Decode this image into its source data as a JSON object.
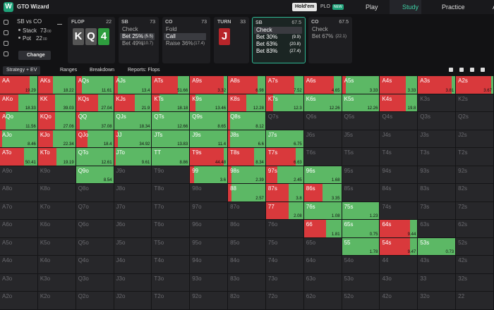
{
  "header": {
    "logo": "W",
    "app": "GTO Wizard",
    "modes": [
      {
        "name": "Hold'em",
        "active": true
      },
      {
        "name": "PLO",
        "active": false,
        "badge": "NEW"
      }
    ],
    "nav": [
      {
        "name": "Play",
        "active": false
      },
      {
        "name": "Study",
        "active": true
      },
      {
        "name": "Practice",
        "active": false
      },
      {
        "name": "Analyze",
        "active": false
      }
    ]
  },
  "scenario": {
    "title": "SB vs CO",
    "stack": {
      "label": "Stack",
      "amount": "73",
      "decimals": "00"
    },
    "pot": {
      "label": "Pot",
      "amount": "22",
      "decimals": "00"
    },
    "button": "Change"
  },
  "flop": {
    "label": "FLOP",
    "pot": 22,
    "cards": [
      {
        "rank": "K",
        "color": "#555"
      },
      {
        "rank": "Q",
        "color": "#555"
      },
      {
        "rank": "4",
        "color": "#2e9e3e"
      }
    ]
  },
  "turn": {
    "label": "TURN",
    "pot": 33,
    "cards": [
      {
        "rank": "J",
        "color": "#b8252a"
      }
    ]
  },
  "players": [
    {
      "name": "SB",
      "stack": 73,
      "actions": [
        {
          "name": "Check"
        },
        {
          "name": "Bet 25%",
          "size": "(5.5)",
          "selected": true
        },
        {
          "name": "Bet 49%",
          "size": "(10.7)"
        }
      ]
    },
    {
      "name": "CO",
      "stack": 73,
      "actions": [
        {
          "name": "Fold"
        },
        {
          "name": "Call",
          "selected": true
        },
        {
          "name": "Raise 36%",
          "size": "(17.4)"
        }
      ]
    },
    {
      "name": "SB",
      "stack": 67.5,
      "current": true,
      "actions": [
        {
          "name": "Check",
          "selected": true
        },
        {
          "name": "Bet 30%",
          "size": "(9.9)"
        },
        {
          "name": "Bet 63%",
          "size": "(20.8)"
        },
        {
          "name": "Bet 83%",
          "size": "(27.4)"
        }
      ]
    },
    {
      "name": "CO",
      "stack": 67.5,
      "actions": [
        {
          "name": "Check"
        },
        {
          "name": "Bet 67%",
          "size": "(22.1)"
        }
      ]
    }
  ],
  "toolbar": [
    "Strategy + EV",
    "Ranges",
    "Breakdown",
    "Reports: Flops"
  ],
  "matrix": {
    "colors": {
      "bet": "#d9393c",
      "check": "#5cb865",
      "empty": "#27272a"
    },
    "rows": [
      [
        {
          "hand": "AA",
          "ev": 19.29,
          "bet": 80
        },
        {
          "hand": "AKs",
          "ev": 18.22,
          "bet": 40
        },
        {
          "hand": "AQs",
          "ev": 11.61,
          "bet": 15
        },
        {
          "hand": "AJs",
          "ev": 13.4,
          "bet": 10
        },
        {
          "hand": "ATs",
          "ev": 51.66,
          "bet": 70
        },
        {
          "hand": "A9s",
          "ev": 3.32,
          "bet": 90
        },
        {
          "hand": "A8s",
          "ev": 6.98,
          "bet": 80
        },
        {
          "hand": "A7s",
          "ev": 7.52,
          "bet": 75
        },
        {
          "hand": "A6s",
          "ev": 4.65,
          "bet": 80
        },
        {
          "hand": "A5s",
          "ev": 3.33,
          "bet": 10
        },
        {
          "hand": "A4s",
          "ev": 3.33,
          "bet": 70
        },
        {
          "hand": "A3s",
          "ev": 3.81,
          "bet": 90
        },
        {
          "hand": "A2s",
          "ev": 3.67,
          "bet": 95
        }
      ],
      [
        {
          "hand": "AKo",
          "ev": 18.33,
          "bet": 50
        },
        {
          "hand": "KK",
          "ev": 39.03,
          "bet": 45
        },
        {
          "hand": "KQs",
          "ev": 27.04,
          "bet": 60
        },
        {
          "hand": "KJs",
          "ev": 21.9,
          "bet": 55
        },
        {
          "hand": "KTs",
          "ev": 18.18,
          "bet": 20
        },
        {
          "hand": "K9s",
          "ev": 13.46,
          "bet": 15
        },
        {
          "hand": "K8s",
          "ev": 12.28,
          "bet": 50
        },
        {
          "hand": "K7s",
          "ev": 12.3,
          "bet": 20
        },
        {
          "hand": "K6s",
          "ev": 12.26,
          "bet": 0
        },
        {
          "hand": "K5s",
          "ev": 12.26,
          "bet": 0
        },
        {
          "hand": "K4s",
          "ev": 19.8,
          "bet": 70
        },
        "K3s",
        "K2s"
      ],
      [
        {
          "hand": "AQo",
          "ev": 11.56,
          "bet": 15
        },
        {
          "hand": "KQo",
          "ev": 27.06,
          "bet": 45
        },
        {
          "hand": "QQ",
          "ev": 37.08,
          "bet": 10
        },
        {
          "hand": "QJs",
          "ev": 18.34,
          "bet": 0
        },
        {
          "hand": "QTs",
          "ev": 12.66,
          "bet": 0
        },
        {
          "hand": "Q9s",
          "ev": 8.65,
          "bet": 0
        },
        {
          "hand": "Q8s",
          "ev": 8.12,
          "bet": 5
        },
        "Q7s",
        "Q6s",
        "Q5s",
        "Q4s",
        "Q3s",
        "Q2s"
      ],
      [
        {
          "hand": "AJo",
          "ev": 8.46,
          "bet": 5
        },
        {
          "hand": "KJo",
          "ev": 22.34,
          "bet": 40
        },
        {
          "hand": "QJo",
          "ev": 18.4,
          "bet": 30
        },
        {
          "hand": "JJ",
          "ev": 34.92,
          "bet": 10
        },
        {
          "hand": "JTs",
          "ev": 13.83,
          "bet": 0
        },
        {
          "hand": "J9s",
          "ev": 11.4,
          "bet": 0
        },
        {
          "hand": "J8s",
          "ev": 6.6,
          "bet": 5
        },
        {
          "hand": "J7s",
          "ev": 6.75,
          "bet": 0
        },
        "J6s",
        "J5s",
        "J4s",
        "J3s",
        "J2s"
      ],
      [
        {
          "hand": "ATo",
          "ev": 50.41,
          "bet": 65
        },
        {
          "hand": "KTo",
          "ev": 19.19,
          "bet": 50
        },
        {
          "hand": "QTo",
          "ev": 12.61,
          "bet": 0
        },
        {
          "hand": "JTo",
          "ev": 9.61,
          "bet": 5
        },
        {
          "hand": "TT",
          "ev": 8.86,
          "bet": 0
        },
        {
          "hand": "T9s",
          "ev": 44.48,
          "bet": 90
        },
        {
          "hand": "T8s",
          "ev": 8.34,
          "bet": 70
        },
        {
          "hand": "T7s",
          "ev": 6.63,
          "bet": 80
        },
        "T6s",
        "T5s",
        "T4s",
        "T3s",
        "T2s"
      ],
      [
        "A9o",
        "K9o",
        {
          "hand": "Q9o",
          "ev": 8.54,
          "bet": 0
        },
        "J9o",
        "T9o",
        {
          "hand": "99",
          "ev": 3.6,
          "bet": 10
        },
        {
          "hand": "98s",
          "ev": 2.39,
          "bet": 10
        },
        {
          "hand": "97s",
          "ev": 2.45,
          "bet": 30
        },
        {
          "hand": "96s",
          "ev": 1.68,
          "bet": 0
        },
        "95s",
        "94s",
        "93s",
        "92s"
      ],
      [
        "A8o",
        "K8o",
        "Q8o",
        "J8o",
        "T8o",
        "98o",
        {
          "hand": "88",
          "ev": 2.57,
          "bet": 10
        },
        {
          "hand": "87s",
          "ev": 3.8,
          "bet": 60
        },
        {
          "hand": "86s",
          "ev": 3.35,
          "bet": 50
        },
        "85s",
        "84s",
        "83s",
        "82s"
      ],
      [
        "A7o",
        "K7o",
        "Q7o",
        "J7o",
        "T7o",
        "97o",
        "87o",
        {
          "hand": "77",
          "ev": 2.08,
          "bet": 60
        },
        {
          "hand": "76s",
          "ev": 1.08,
          "bet": 0
        },
        {
          "hand": "75s",
          "ev": 1.23,
          "bet": 0
        },
        "74s",
        "73s",
        "72s"
      ],
      [
        "A6o",
        "K6o",
        "Q6o",
        "J6o",
        "T6o",
        "96o",
        "86o",
        "76o",
        {
          "hand": "66",
          "ev": 1.81,
          "bet": 60
        },
        {
          "hand": "65s",
          "ev": 0.75,
          "bet": 0
        },
        {
          "hand": "64s",
          "ev": 9.44,
          "bet": 80
        },
        "63s",
        "62s"
      ],
      [
        "A5o",
        "K5o",
        "Q5o",
        "J5o",
        "T5o",
        "95o",
        "85o",
        "75o",
        "65o",
        {
          "hand": "55",
          "ev": 1.78,
          "bet": 0
        },
        {
          "hand": "54s",
          "ev": 9.47,
          "bet": 80
        },
        {
          "hand": "53s",
          "ev": 0.73,
          "bet": 0
        },
        "52s"
      ],
      [
        "A4o",
        "K4o",
        "Q4o",
        "J4o",
        "T4o",
        "94o",
        "84o",
        "74o",
        "64o",
        "54o",
        "44",
        "43s",
        "42s"
      ],
      [
        "A3o",
        "K3o",
        "Q3o",
        "J3o",
        "T3o",
        "93o",
        "83o",
        "73o",
        "63o",
        "53o",
        "43o",
        "33",
        "32s"
      ],
      [
        "A2o",
        "K2o",
        "Q2o",
        "J2o",
        "T2o",
        "92o",
        "82o",
        "72o",
        "62o",
        "52o",
        "42o",
        "32o",
        "22"
      ]
    ]
  }
}
